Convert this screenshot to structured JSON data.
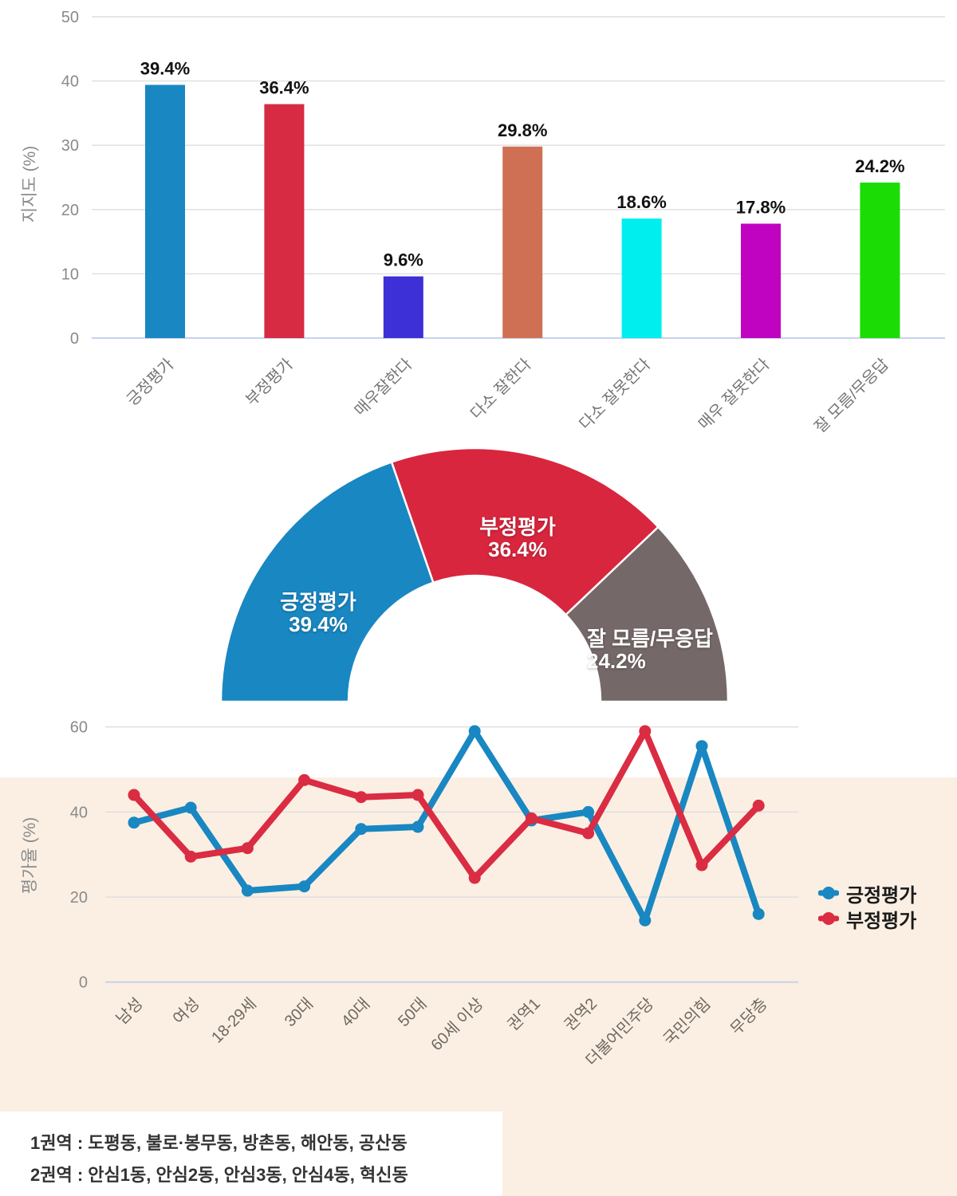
{
  "colors": {
    "page_bg": "#FFFFFF",
    "band_bg": "#FBEFE3",
    "gridline": "#DEDEDE",
    "axis_line": "#C7D2EC",
    "tick_text": "#8A8A8A",
    "positive_blue": "#1987C2",
    "negative_red": "#D62B42",
    "unknown_gray": "#756868"
  },
  "chart_data": [
    {
      "type": "bar",
      "ylabel": "지지도 (%)",
      "ylim": [
        0,
        50
      ],
      "yticks": [
        0,
        10,
        20,
        30,
        40,
        50
      ],
      "grid": true,
      "categories": [
        "긍정평가",
        "부정평가",
        "매우잘한다",
        "다소 잘한다",
        "다소 잘못한다",
        "매우 잘못한다",
        "잘 모름/무응답"
      ],
      "values": [
        39.4,
        36.4,
        9.6,
        29.8,
        18.6,
        17.8,
        24.2
      ],
      "value_labels": [
        "39.4%",
        "36.4%",
        "9.6%",
        "29.8%",
        "18.6%",
        "17.8%",
        "24.2%"
      ],
      "bar_colors": [
        "#1987C2",
        "#D62B42",
        "#3C30D6",
        "#CF7054",
        "#00EEEE",
        "#C003C0",
        "#1BDC04"
      ]
    },
    {
      "type": "pie",
      "subtype": "half-donut",
      "total_angle_deg": 180,
      "slices": [
        {
          "label": "긍정평가",
          "value": 39.4,
          "pct_label": "39.4%",
          "color": "#1987C2"
        },
        {
          "label": "부정평가",
          "value": 36.4,
          "pct_label": "36.4%",
          "color": "#D8263E"
        },
        {
          "label": "잘 모름/무응답",
          "value": 24.2,
          "pct_label": "24.2%",
          "color": "#756868"
        }
      ]
    },
    {
      "type": "line",
      "ylabel": "평가율 (%)",
      "ylim": [
        0,
        60
      ],
      "yticks": [
        0,
        20,
        40,
        60
      ],
      "grid": true,
      "legend_position": "right",
      "categories": [
        "남성",
        "여성",
        "18-29세",
        "30대",
        "40대",
        "50대",
        "60세 이상",
        "권역1",
        "권역2",
        "더불어민주당",
        "국민의힘",
        "무당층"
      ],
      "series": [
        {
          "key": "positive",
          "name": "긍정평가",
          "color": "#1987C2",
          "values": [
            37.5,
            41,
            21.5,
            22.5,
            36,
            36.5,
            59,
            38,
            40,
            14.5,
            55.5,
            16
          ]
        },
        {
          "key": "negative",
          "name": "부정평가",
          "color": "#DA2C42",
          "values": [
            44,
            29.5,
            31.5,
            47.5,
            43.5,
            44,
            24.5,
            38.5,
            35,
            59,
            27.5,
            41.5
          ]
        }
      ]
    }
  ],
  "footnote": {
    "line1": "1권역 : 도평동, 불로·봉무동, 방촌동, 해안동, 공산동",
    "line2": "2권역 : 안심1동, 안심2동, 안심3동, 안심4동, 혁신동"
  }
}
